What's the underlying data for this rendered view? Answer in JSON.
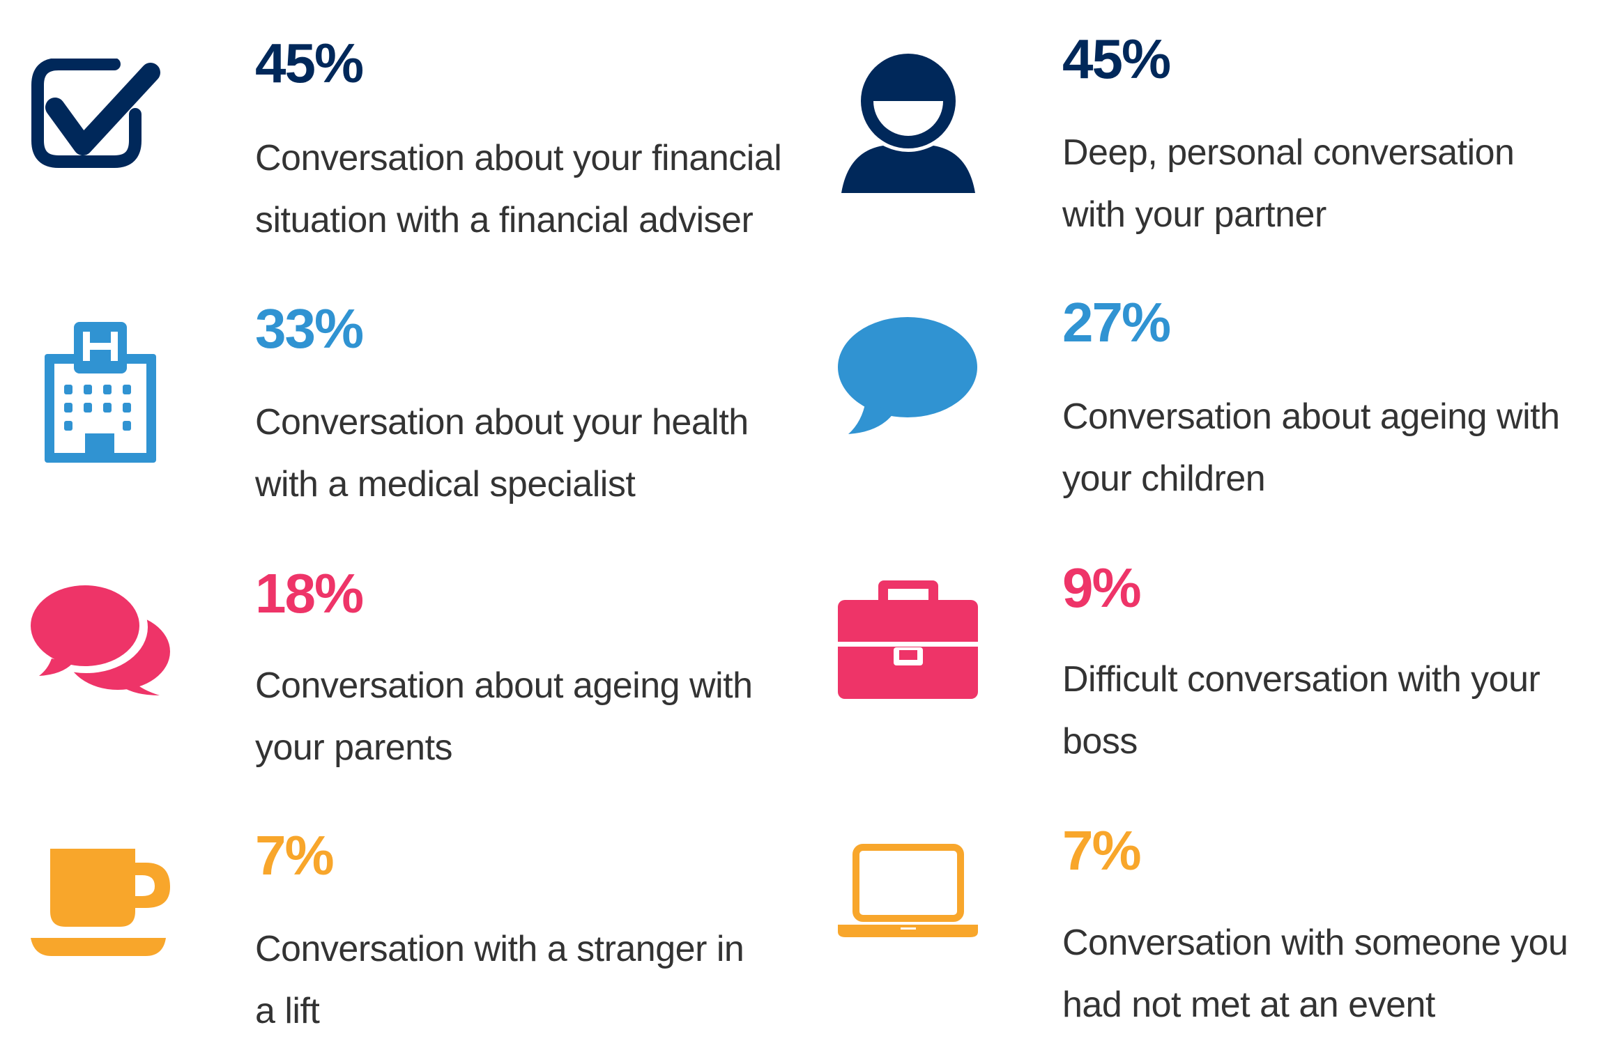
{
  "colors": {
    "navy": "#00285a",
    "blue": "#3093d2",
    "pink": "#ee3468",
    "orange": "#f8a62b",
    "text": "#333333"
  },
  "items": [
    {
      "icon": "checkbox-icon",
      "percent": "45%",
      "line1": "Conversation about your financial",
      "line2": "situation with a financial adviser"
    },
    {
      "icon": "person-icon",
      "percent": "45%",
      "line1": "Deep, personal conversation",
      "line2": "with your partner"
    },
    {
      "icon": "hospital-icon",
      "percent": "33%",
      "line1": "Conversation about your health",
      "line2": "with a medical specialist"
    },
    {
      "icon": "speech-bubble-icon",
      "percent": "27%",
      "line1": "Conversation about ageing with",
      "line2": "your children"
    },
    {
      "icon": "speech-bubbles-icon",
      "percent": "18%",
      "line1": "Conversation about ageing with",
      "line2": "your parents"
    },
    {
      "icon": "briefcase-icon",
      "percent": "9%",
      "line1": "Difficult conversation with your",
      "line2": "boss"
    },
    {
      "icon": "coffee-cup-icon",
      "percent": "7%",
      "line1": "Conversation with a stranger in",
      "line2": "a lift"
    },
    {
      "icon": "laptop-icon",
      "percent": "7%",
      "line1": "Conversation with someone you",
      "line2": "had not met at an event"
    }
  ]
}
